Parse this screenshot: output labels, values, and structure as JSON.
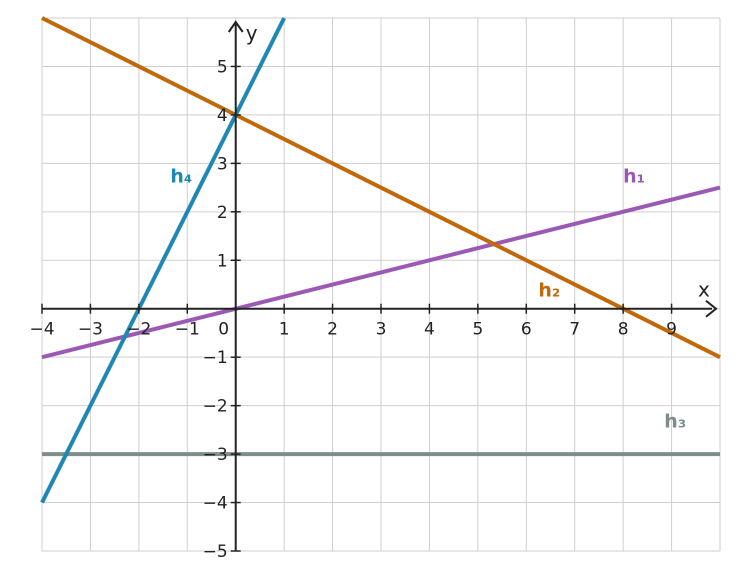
{
  "chart_data": {
    "type": "line",
    "xlabel": "x",
    "ylabel": "y",
    "xlim": [
      -4,
      10
    ],
    "ylim": [
      -5,
      6
    ],
    "grid": true,
    "x_ticks": [
      -4,
      -3,
      -2,
      -1,
      0,
      1,
      2,
      3,
      4,
      5,
      6,
      7,
      8,
      9
    ],
    "y_ticks": [
      -5,
      -4,
      -3,
      -2,
      -1,
      1,
      2,
      3,
      4,
      5
    ],
    "x_tick_labels": [
      "−4",
      "−3",
      "−2",
      "−1",
      "0",
      "1",
      "2",
      "3",
      "4",
      "5",
      "6",
      "7",
      "8",
      "9"
    ],
    "y_tick_labels": [
      "−5",
      "−4",
      "−3",
      "−2",
      "−1",
      "1",
      "2",
      "3",
      "4",
      "5"
    ],
    "series": [
      {
        "name": "h₁",
        "color": "#9b59b6",
        "x": [
          -4,
          10
        ],
        "y": [
          -1,
          2.5
        ],
        "label_x": 8.0,
        "label_y": 2.6
      },
      {
        "name": "h₂",
        "color": "#c0690b",
        "x": [
          -4,
          10
        ],
        "y": [
          6,
          -1
        ],
        "label_x": 6.25,
        "label_y": 0.25
      },
      {
        "name": "h₃",
        "color": "#7f8c8d",
        "x": [
          -4,
          10
        ],
        "y": [
          -3,
          -3
        ],
        "label_x": 8.85,
        "label_y": -2.45
      },
      {
        "name": "h₄",
        "color": "#1f87b4",
        "x": [
          -4,
          1
        ],
        "y": [
          -4,
          6
        ],
        "label_x": -1.35,
        "label_y": 2.6
      }
    ]
  }
}
